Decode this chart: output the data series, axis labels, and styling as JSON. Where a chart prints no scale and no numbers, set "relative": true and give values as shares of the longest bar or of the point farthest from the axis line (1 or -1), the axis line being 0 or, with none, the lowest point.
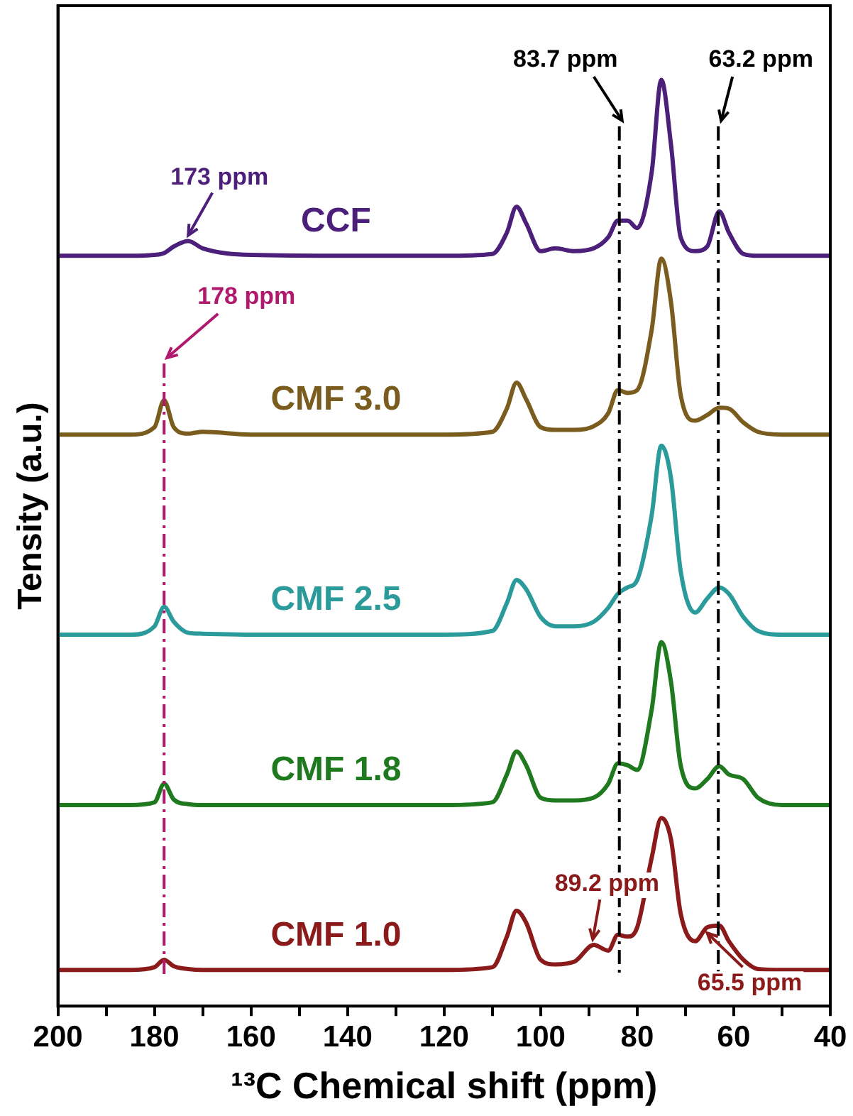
{
  "chart_data": {
    "type": "line",
    "relative": true,
    "xlabel": "¹³C Chemical shift (ppm)",
    "ylabel": "Tensity (a.u.)",
    "xlim": [
      200,
      40
    ],
    "xticks": [
      200,
      {
        "value": 190,
        "label": null
      },
      180,
      {
        "value": 170,
        "label": null
      },
      160,
      {
        "value": 150,
        "label": null
      },
      140,
      {
        "value": 130,
        "label": null
      },
      120,
      {
        "value": 110,
        "label": null
      },
      100,
      {
        "value": 90,
        "label": null
      },
      80,
      {
        "value": 70,
        "label": null
      },
      60,
      {
        "value": 50,
        "label": null
      },
      40
    ],
    "x": [
      200,
      185,
      180,
      178,
      176,
      173,
      170,
      160,
      140,
      120,
      110,
      107,
      105,
      103,
      100,
      97,
      93,
      89,
      86,
      84,
      82,
      80,
      77,
      75,
      73,
      71,
      68,
      65.5,
      63,
      61,
      58,
      55,
      50,
      40
    ],
    "grid": false,
    "legend": false,
    "tick_labels": "x",
    "marker": "none",
    "line_style": "solid",
    "series": [
      {
        "name": "CCF",
        "color": "#4b1f7a",
        "values": [
          0.81,
          0.81,
          0.811,
          0.813,
          0.82,
          0.826,
          0.818,
          0.811,
          0.81,
          0.81,
          0.812,
          0.835,
          0.863,
          0.845,
          0.815,
          0.818,
          0.815,
          0.818,
          0.83,
          0.848,
          0.848,
          0.84,
          0.9,
          1.0,
          0.93,
          0.83,
          0.815,
          0.82,
          0.858,
          0.835,
          0.812,
          0.81,
          0.81,
          0.81
        ]
      },
      {
        "name": "CMF 3.0",
        "color": "#7a5c1e",
        "values": [
          0.617,
          0.617,
          0.625,
          0.654,
          0.625,
          0.618,
          0.62,
          0.617,
          0.617,
          0.617,
          0.62,
          0.645,
          0.673,
          0.655,
          0.625,
          0.622,
          0.622,
          0.626,
          0.64,
          0.665,
          0.662,
          0.665,
          0.73,
          0.807,
          0.76,
          0.66,
          0.632,
          0.638,
          0.646,
          0.645,
          0.63,
          0.62,
          0.617,
          0.617
        ]
      },
      {
        "name": "CMF 2.5",
        "color": "#2a9a9a",
        "values": [
          0.401,
          0.401,
          0.41,
          0.431,
          0.415,
          0.403,
          0.402,
          0.401,
          0.401,
          0.401,
          0.405,
          0.435,
          0.46,
          0.45,
          0.42,
          0.41,
          0.41,
          0.415,
          0.43,
          0.445,
          0.452,
          0.46,
          0.53,
          0.605,
          0.57,
          0.47,
          0.425,
          0.44,
          0.452,
          0.445,
          0.42,
          0.405,
          0.401,
          0.401
        ]
      },
      {
        "name": "CMF 1.8",
        "color": "#1f7a1f",
        "values": [
          0.217,
          0.217,
          0.22,
          0.24,
          0.223,
          0.218,
          0.217,
          0.217,
          0.217,
          0.217,
          0.22,
          0.25,
          0.275,
          0.26,
          0.225,
          0.222,
          0.222,
          0.225,
          0.24,
          0.262,
          0.26,
          0.255,
          0.32,
          0.393,
          0.35,
          0.26,
          0.235,
          0.245,
          0.259,
          0.25,
          0.245,
          0.225,
          0.217,
          0.217
        ]
      },
      {
        "name": "CMF 1.0",
        "color": "#8b1a1a",
        "values": [
          0.039,
          0.039,
          0.042,
          0.05,
          0.043,
          0.04,
          0.039,
          0.039,
          0.039,
          0.039,
          0.042,
          0.075,
          0.103,
          0.09,
          0.05,
          0.045,
          0.048,
          0.066,
          0.06,
          0.077,
          0.075,
          0.085,
          0.16,
          0.203,
          0.18,
          0.1,
          0.07,
          0.085,
          0.087,
          0.07,
          0.05,
          0.04,
          0.039,
          0.039
        ]
      }
    ],
    "ref_lines": [
      {
        "axis": "x",
        "value": 178,
        "label": "178 ppm",
        "color": "#b0196e",
        "line_style": "dashed"
      },
      {
        "axis": "x",
        "value": 83.7,
        "label": "83.7 ppm",
        "color": "#000000",
        "line_style": "dashed"
      },
      {
        "axis": "x",
        "value": 63.2,
        "label": "63.2 ppm",
        "color": "#000000",
        "line_style": "dashed"
      }
    ],
    "annotations": [
      {
        "text": "173 ppm",
        "x": 173,
        "y": 0.826
      },
      {
        "text": "89.2 ppm",
        "x": 89.2,
        "y": 0.066
      },
      {
        "text": "65.5 ppm",
        "x": 65.5,
        "y": 0.085
      }
    ]
  }
}
